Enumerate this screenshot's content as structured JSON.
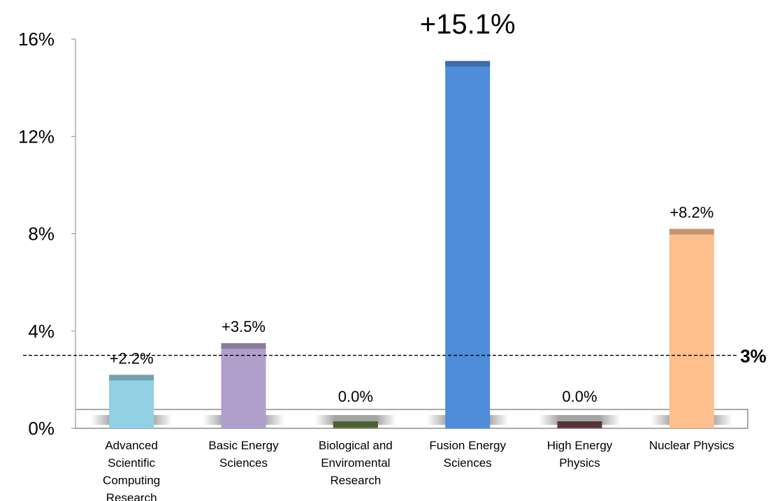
{
  "chart_data": {
    "type": "bar",
    "categories": [
      "Advanced Scientific Computing Research",
      "Basic Energy Sciences",
      "Biological and Enviromental Research",
      "Fusion Energy Sciences",
      "High Energy Physics",
      "Nuclear Physics"
    ],
    "category_lines": [
      [
        "Advanced",
        "Scientific",
        "Computing",
        "Research"
      ],
      [
        "Basic Energy",
        "Sciences"
      ],
      [
        "Biological and",
        "Enviromental",
        "Research"
      ],
      [
        "Fusion Energy",
        "Sciences"
      ],
      [
        "High Energy",
        "Physics"
      ],
      [
        "Nuclear Physics"
      ]
    ],
    "values": [
      2.2,
      3.5,
      0.0,
      15.1,
      0.0,
      8.2
    ],
    "data_labels": [
      "+2.2%",
      "+3.5%",
      "0.0%",
      "+15.1%",
      "0.0%",
      "+8.2%"
    ],
    "bar_colors": [
      "#92d0e3",
      "#b09fcb",
      "#5f7a46",
      "#4f8cd9",
      "#6b4344",
      "#fdbf8e"
    ],
    "ylim": [
      0,
      16
    ],
    "yticks": [
      0,
      4,
      8,
      12,
      16
    ],
    "ytick_labels": [
      "0%",
      "4%",
      "8%",
      "12%",
      "16%"
    ],
    "reference_line": {
      "value": 3,
      "label": "3%"
    },
    "grid": false,
    "title": "",
    "xlabel": "",
    "ylabel": ""
  }
}
